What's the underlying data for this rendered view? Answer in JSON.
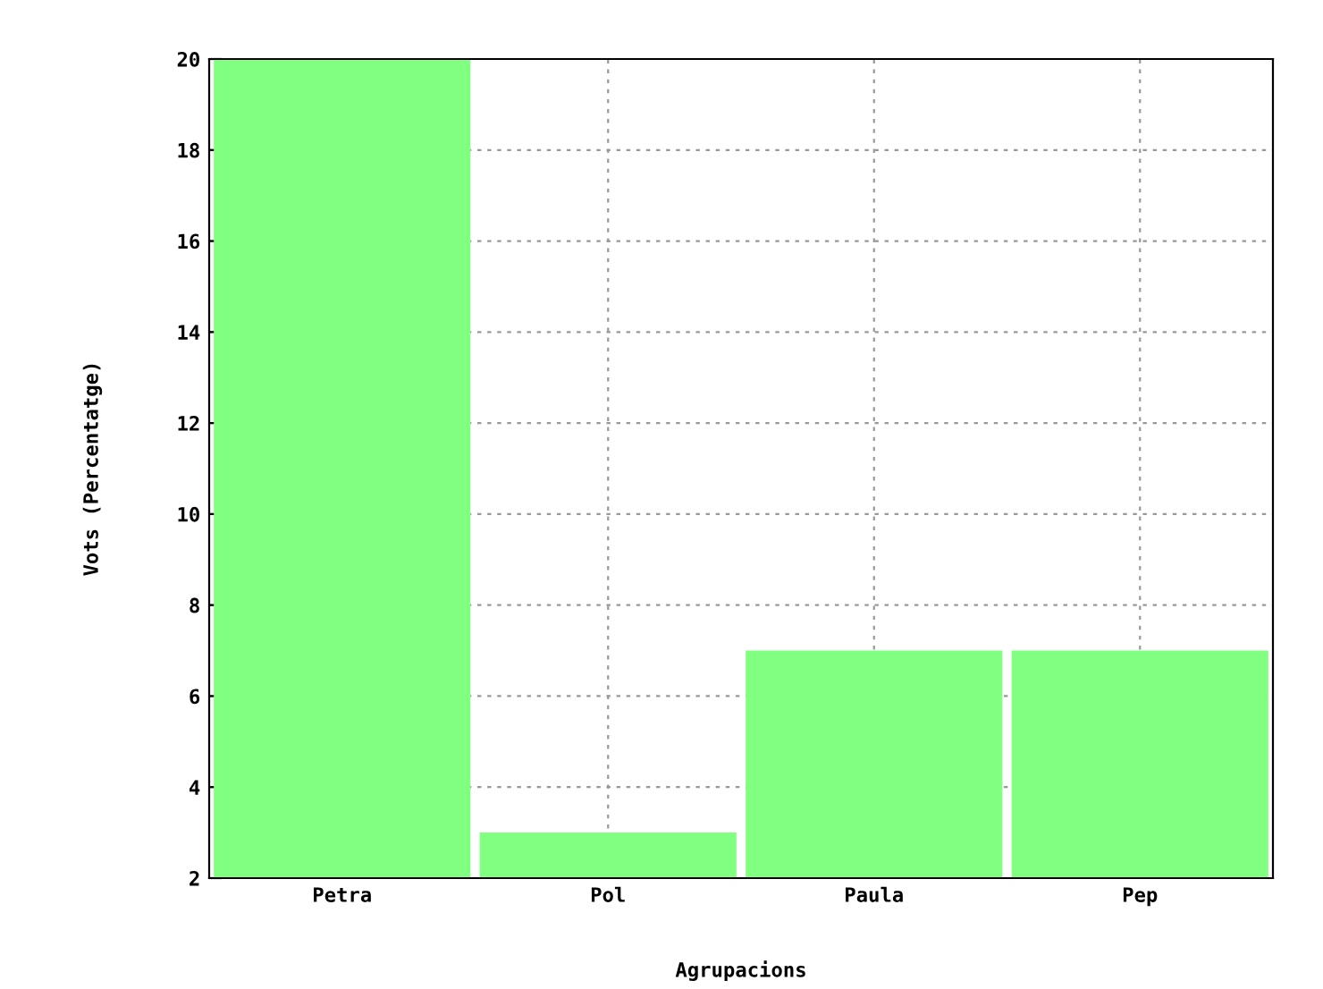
{
  "chart_data": {
    "type": "bar",
    "xlabel": "Agrupacions",
    "ylabel": "Vots (Percentatge)",
    "categories": [
      "Petra",
      "Pol",
      "Paula",
      "Pep"
    ],
    "values": [
      20,
      3,
      7,
      7
    ],
    "color": "#80ff80",
    "ylim": [
      2,
      20
    ],
    "yticks": [
      2,
      4,
      6,
      8,
      10,
      12,
      14,
      16,
      18,
      20
    ],
    "grid": true
  }
}
